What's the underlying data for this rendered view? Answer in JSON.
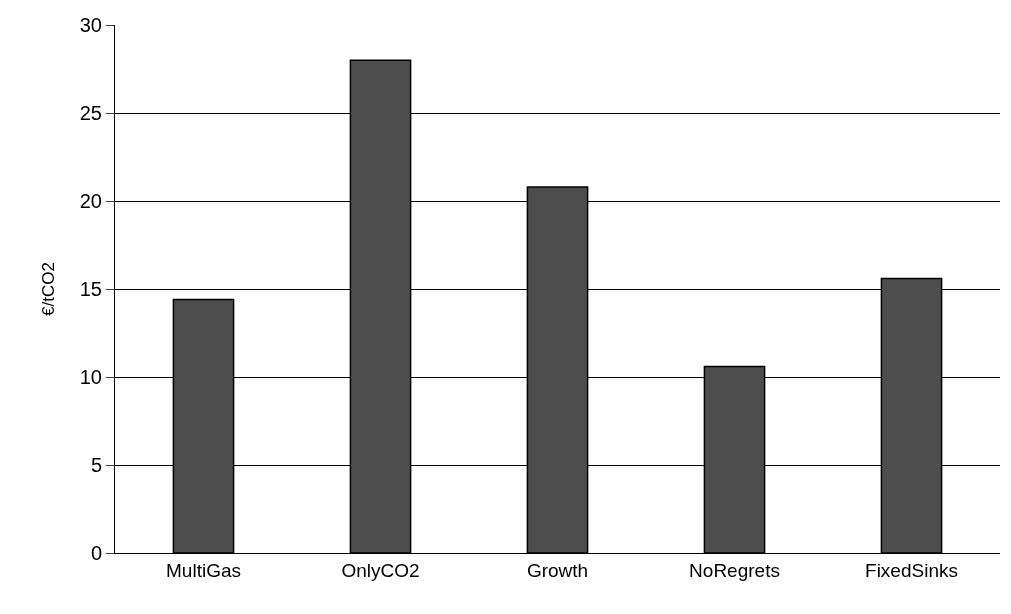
{
  "chart_data": {
    "type": "bar",
    "ylabel": "€/tCO2",
    "categories": [
      "MultiGas",
      "OnlyCO2",
      "Growth",
      "NoRegrets",
      "FixedSinks"
    ],
    "values": [
      14.4,
      28.0,
      20.8,
      10.6,
      15.6
    ],
    "color": "#4d4d4d",
    "ylim": [
      0,
      30
    ],
    "yticks": [
      0,
      5,
      10,
      15,
      20,
      25,
      30
    ],
    "grid": "y",
    "legend": false
  }
}
